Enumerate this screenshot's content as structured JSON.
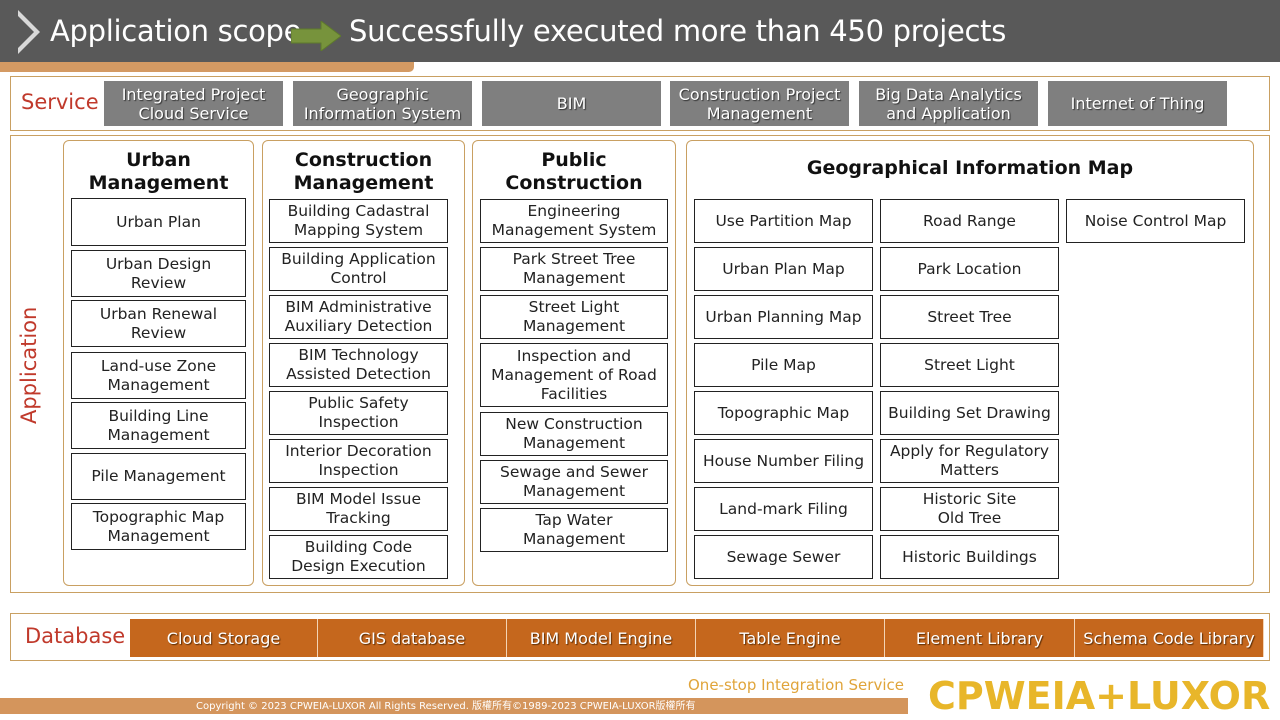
{
  "header": {
    "title": "Application scope",
    "subtitle": "Successfully executed more than 450 projects"
  },
  "colors": {
    "header_bg": "#595959",
    "accent_orange": "#d4955c",
    "frame_border": "#c9a062",
    "label_red": "#c0392b",
    "service_gray": "#7f7f7f",
    "database_orange": "#c5671d",
    "arrow_green": "#77933c",
    "logo_gold": "#e8b62a"
  },
  "service": {
    "label": "Service",
    "items": [
      "Integrated Project\nCloud Service",
      "Geographic\nInformation System",
      "BIM",
      "Construction Project\nManagement",
      "Big Data Analytics\nand Application",
      "Internet of Thing"
    ]
  },
  "application": {
    "label": "Application",
    "columns": [
      {
        "title": "Urban\nManagement",
        "items": [
          "Urban Plan",
          "Urban Design\nReview",
          "Urban Renewal\nReview",
          "Land-use Zone\nManagement",
          "Building Line\nManagement",
          "Pile Management",
          "Topographic Map\nManagement"
        ]
      },
      {
        "title": "Construction\nManagement",
        "items": [
          "Building Cadastral\nMapping System",
          "Building Application\nControl",
          "BIM Administrative\nAuxiliary Detection",
          "BIM Technology\nAssisted Detection",
          "Public Safety\nInspection",
          "Interior Decoration\nInspection",
          "BIM Model Issue\nTracking",
          "Building Code\nDesign Execution"
        ]
      },
      {
        "title": "Public\nConstruction",
        "items": [
          "Engineering\nManagement System",
          "Park Street Tree\nManagement",
          "Street Light\nManagement",
          "Inspection and\nManagement of Road\nFacilities",
          "New Construction\nManagement",
          "Sewage and Sewer\nManagement",
          "Tap Water\nManagement"
        ]
      }
    ],
    "gis": {
      "title": "Geographical Information Map",
      "col1": [
        "Use Partition Map",
        "Urban Plan Map",
        "Urban Planning Map",
        "Pile Map",
        "Topographic Map",
        "House Number Filing",
        "Land-mark Filing",
        "Sewage Sewer"
      ],
      "col2": [
        "Road Range",
        "Park Location",
        "Street Tree",
        "Street Light",
        "Building Set Drawing",
        "Apply for Regulatory\nMatters",
        "Historic Site\nOld Tree",
        "Historic Buildings"
      ],
      "col3": [
        "Noise Control Map"
      ]
    }
  },
  "database": {
    "label": "Database",
    "items": [
      "Cloud Storage",
      "GIS database",
      "BIM Model Engine",
      "Table Engine",
      "Element Library",
      "Schema Code Library"
    ]
  },
  "footer": {
    "tagline": "One-stop Integration Service",
    "copyright": "Copyright © 2023 CPWEIA-LUXOR All Rights Reserved. 版權所有©1989-2023 CPWEIA-LUXOR版權所有",
    "logo": "CPWEIA+LUXOR"
  }
}
